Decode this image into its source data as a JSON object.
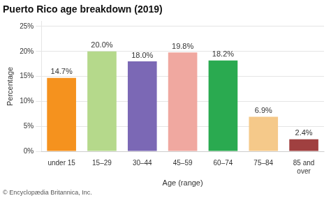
{
  "chart_data": {
    "type": "bar",
    "title": "Puerto Rico age breakdown (2019)",
    "categories": [
      "under 15",
      "15–29",
      "30–44",
      "45–59",
      "60–74",
      "75–84",
      "85 and\nover"
    ],
    "values": [
      14.7,
      20.0,
      18.0,
      19.8,
      18.2,
      6.9,
      2.4
    ],
    "value_labels": [
      "14.7%",
      "20.0%",
      "18.0%",
      "19.8%",
      "18.2%",
      "6.9%",
      "2.4%"
    ],
    "data_labels": true,
    "colors": [
      "#f5921e",
      "#b5d98b",
      "#7b68b5",
      "#f0a8a0",
      "#2aaa50",
      "#f5c98a",
      "#a04040"
    ],
    "xlabel": "Age (range)",
    "ylabel": "Percentage",
    "ylim": [
      0,
      26
    ],
    "yticks": [
      {
        "value": 0,
        "label": "0%"
      },
      {
        "value": 5,
        "label": "5%"
      },
      {
        "value": 10,
        "label": "10%"
      },
      {
        "value": 15,
        "label": "15%"
      },
      {
        "value": 20,
        "label": "20%"
      },
      {
        "value": 25,
        "label": "25%"
      }
    ],
    "grid": true,
    "footnote": "© Encyclopædia Britannica, Inc."
  }
}
